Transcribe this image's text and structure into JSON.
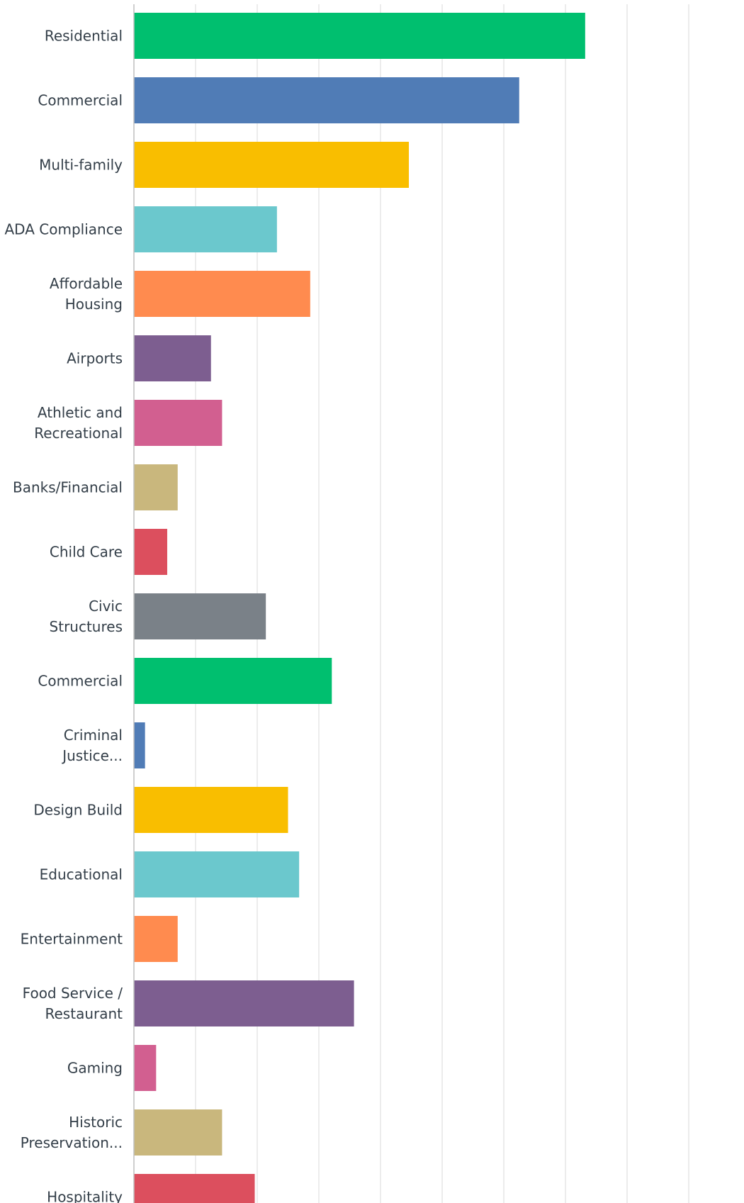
{
  "chart_data": {
    "type": "bar",
    "orientation": "horizontal",
    "title": "",
    "xlabel": "",
    "ylabel": "",
    "grid": true,
    "xlim": [
      0,
      0.9
    ],
    "categories": [
      "Residential",
      "Commercial",
      "Multi-family",
      "ADA Compliance",
      "Affordable Housing",
      "Airports",
      "Athletic and Recreational",
      "Banks/Financial",
      "Child Care",
      "Civic Structures",
      "Commercial",
      "Criminal Justice...",
      "Design Build",
      "Educational",
      "Entertainment",
      "Food Service / Restaurant",
      "Gaming",
      "Historic Preservation...",
      "Hospitality"
    ],
    "label_lines": [
      [
        "Residential"
      ],
      [
        "Commercial"
      ],
      [
        "Multi-family"
      ],
      [
        "ADA Compliance"
      ],
      [
        "Affordable",
        "Housing"
      ],
      [
        "Airports"
      ],
      [
        "Athletic and",
        "Recreational"
      ],
      [
        "Banks/Financial"
      ],
      [
        "Child Care"
      ],
      [
        "Civic",
        "Structures"
      ],
      [
        "Commercial"
      ],
      [
        "Criminal",
        "Justice..."
      ],
      [
        "Design Build"
      ],
      [
        "Educational"
      ],
      [
        "Entertainment"
      ],
      [
        "Food Service /",
        "Restaurant"
      ],
      [
        "Gaming"
      ],
      [
        "Historic",
        "Preservation..."
      ],
      [
        "Hospitality"
      ]
    ],
    "values": [
      0.732,
      0.625,
      0.446,
      0.232,
      0.286,
      0.125,
      0.143,
      0.071,
      0.054,
      0.214,
      0.321,
      0.018,
      0.25,
      0.268,
      0.071,
      0.357,
      0.036,
      0.143,
      0.196
    ],
    "colors": [
      "#00bf6f",
      "#507cb6",
      "#f9be00",
      "#6bc8cd",
      "#ff8b4f",
      "#7d5e90",
      "#d25f90",
      "#c9b77d",
      "#dc4f5e",
      "#7a8188",
      "#00bf6f",
      "#507cb6",
      "#f9be00",
      "#6bc8cd",
      "#ff8b4f",
      "#7d5e90",
      "#d25f90",
      "#c9b77d",
      "#dc4f5e"
    ]
  }
}
